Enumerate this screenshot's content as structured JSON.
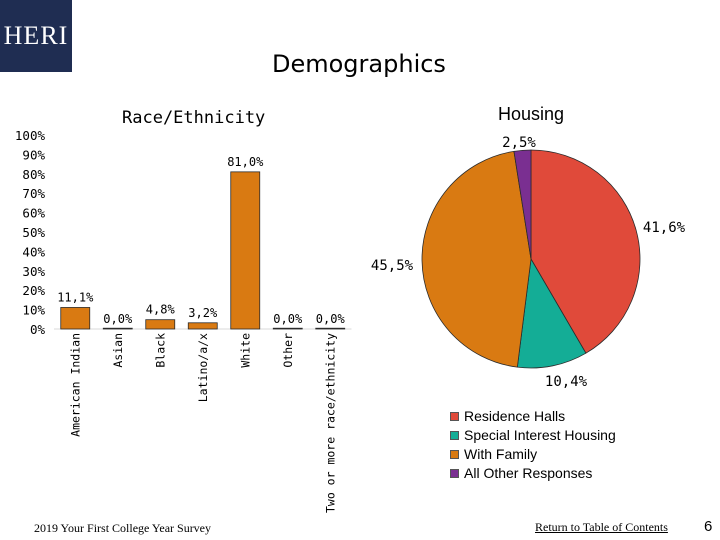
{
  "header": {
    "logo_text": "HERI",
    "title": "Demographics"
  },
  "chart_data": [
    {
      "type": "bar",
      "title": "Race/Ethnicity",
      "categories": [
        "American Indian",
        "Asian",
        "Black",
        "Latino/a/x",
        "White",
        "Other",
        "Two or more race/ethnicity"
      ],
      "values": [
        11.1,
        0.0,
        4.8,
        3.2,
        81.0,
        0.0,
        0.0
      ],
      "data_labels": [
        "11,1%",
        "0,0%",
        "4,8%",
        "3,2%",
        "81,0%",
        "0,0%",
        "0,0%"
      ],
      "y_ticks": [
        "100%",
        "90%",
        "80%",
        "70%",
        "60%",
        "50%",
        "40%",
        "30%",
        "20%",
        "10%",
        "0%"
      ],
      "ylim": [
        0,
        100
      ],
      "color": "#d97a12"
    },
    {
      "type": "pie",
      "title": "Housing",
      "labels": [
        "Residence Halls",
        "Special Interest Housing",
        "With Family",
        "All Other Responses"
      ],
      "values": [
        41.6,
        10.4,
        45.5,
        2.5
      ],
      "data_labels": [
        "41,6%",
        "10,4%",
        "45,5%",
        "2,5%"
      ],
      "colors": [
        "#e04a3a",
        "#14ad96",
        "#d97a12",
        "#7a2f91"
      ]
    }
  ],
  "footer": {
    "survey": "2019 Your First College Year Survey",
    "link": "Return to Table of Contents",
    "page_number": "6"
  }
}
